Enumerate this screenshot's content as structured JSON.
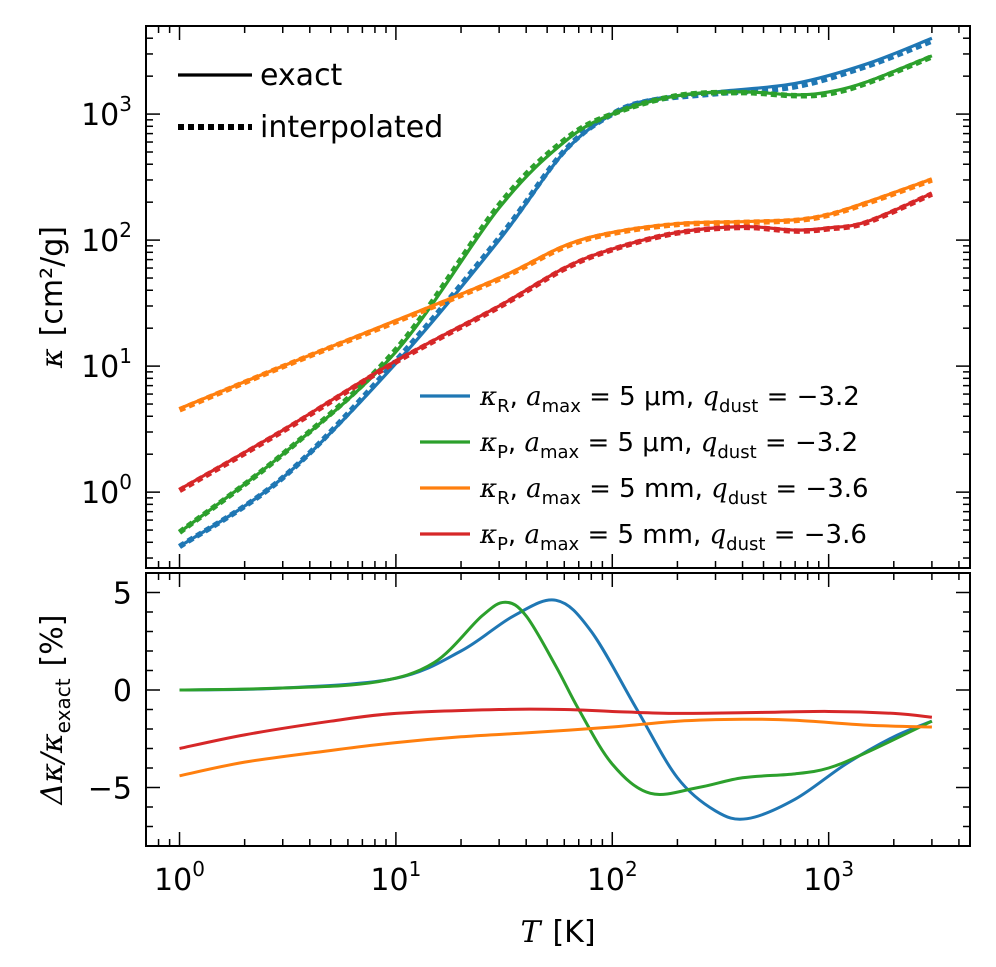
{
  "chart_data": [
    {
      "type": "line",
      "panel": "top",
      "xscale": "log",
      "yscale": "log",
      "xlim": [
        0.7,
        4500
      ],
      "ylim": [
        0.25,
        5000
      ],
      "ylabel_symbol": "κ",
      "ylabel_unit": "[cm²/g]",
      "x_ticks": [
        {
          "v": 1,
          "base": "10",
          "exp": "0"
        },
        {
          "v": 10,
          "base": "10",
          "exp": "1"
        },
        {
          "v": 100,
          "base": "10",
          "exp": "2"
        },
        {
          "v": 1000,
          "base": "10",
          "exp": "3"
        }
      ],
      "y_ticks": [
        {
          "v": 1,
          "base": "10",
          "exp": "0"
        },
        {
          "v": 10,
          "base": "10",
          "exp": "1"
        },
        {
          "v": 100,
          "base": "10",
          "exp": "2"
        },
        {
          "v": 1000,
          "base": "10",
          "exp": "3"
        }
      ],
      "style_legend": [
        {
          "label": "exact",
          "style": "solid"
        },
        {
          "label": "interpolated",
          "style": "dotted"
        }
      ],
      "series": [
        {
          "name": "κR, amax = 5 μm, qdust = −3.2",
          "kappa": "κ",
          "sub": "R",
          "amax": "5",
          "unit": "μm",
          "q": "−3.2",
          "color": "#1f77b4",
          "exact": [
            [
              1,
              0.37
            ],
            [
              3,
              1.3
            ],
            [
              10,
              10.5
            ],
            [
              30,
              100
            ],
            [
              60,
              500
            ],
            [
              100,
              1000
            ],
            [
              150,
              1300
            ],
            [
              300,
              1500
            ],
            [
              700,
              1750
            ],
            [
              1500,
              2500
            ],
            [
              3000,
              4000
            ]
          ],
          "interp": [
            [
              1,
              0.37
            ],
            [
              3,
              1.3
            ],
            [
              10,
              11
            ],
            [
              30,
              104
            ],
            [
              60,
              510
            ],
            [
              100,
              1000
            ],
            [
              150,
              1280
            ],
            [
              300,
              1450
            ],
            [
              700,
              1650
            ],
            [
              1500,
              2400
            ],
            [
              3000,
              3800
            ]
          ]
        },
        {
          "name": "κP, amax = 5 μm, qdust = −3.2",
          "kappa": "κ",
          "sub": "P",
          "amax": "5",
          "unit": "μm",
          "q": "−3.2",
          "color": "#2ca02c",
          "exact": [
            [
              1,
              0.48
            ],
            [
              3,
              2.0
            ],
            [
              10,
              13
            ],
            [
              30,
              180
            ],
            [
              60,
              600
            ],
            [
              100,
              1000
            ],
            [
              200,
              1400
            ],
            [
              400,
              1500
            ],
            [
              700,
              1420
            ],
            [
              1000,
              1500
            ],
            [
              1500,
              1800
            ],
            [
              3000,
              2900
            ]
          ],
          "interp": [
            [
              1,
              0.48
            ],
            [
              3,
              2.0
            ],
            [
              10,
              13.5
            ],
            [
              30,
              190
            ],
            [
              60,
              620
            ],
            [
              100,
              1000
            ],
            [
              200,
              1400
            ],
            [
              400,
              1480
            ],
            [
              700,
              1400
            ],
            [
              1000,
              1450
            ],
            [
              1500,
              1760
            ],
            [
              3000,
              2850
            ]
          ]
        },
        {
          "name": "κR, amax = 5 mm, qdust = −3.6",
          "kappa": "κ",
          "sub": "R",
          "amax": "5",
          "unit": "mm",
          "q": "−3.6",
          "color": "#ff7f0e",
          "exact": [
            [
              1,
              4.6
            ],
            [
              3,
              10
            ],
            [
              10,
              23
            ],
            [
              30,
              50
            ],
            [
              60,
              90
            ],
            [
              100,
              115
            ],
            [
              200,
              135
            ],
            [
              400,
              140
            ],
            [
              700,
              145
            ],
            [
              1000,
              160
            ],
            [
              1500,
              200
            ],
            [
              3000,
              305
            ]
          ],
          "interp": [
            [
              1,
              4.5
            ],
            [
              3,
              9.9
            ],
            [
              10,
              22.5
            ],
            [
              30,
              49
            ],
            [
              60,
              88
            ],
            [
              100,
              113
            ],
            [
              200,
              133
            ],
            [
              400,
              138
            ],
            [
              700,
              143
            ],
            [
              1000,
              158
            ],
            [
              1500,
              196
            ],
            [
              3000,
              300
            ]
          ]
        },
        {
          "name": "κP, amax = 5 mm, qdust = −3.6",
          "kappa": "κ",
          "sub": "P",
          "amax": "5",
          "unit": "mm",
          "q": "−3.6",
          "color": "#d62728",
          "exact": [
            [
              1,
              1.05
            ],
            [
              3,
              3.1
            ],
            [
              10,
              11
            ],
            [
              30,
              30
            ],
            [
              60,
              60
            ],
            [
              100,
              85
            ],
            [
              200,
              115
            ],
            [
              400,
              128
            ],
            [
              700,
              120
            ],
            [
              1000,
              125
            ],
            [
              1500,
              140
            ],
            [
              3000,
              235
            ]
          ],
          "interp": [
            [
              1,
              1.03
            ],
            [
              3,
              3.05
            ],
            [
              10,
              10.8
            ],
            [
              30,
              29.5
            ],
            [
              60,
              59
            ],
            [
              100,
              84
            ],
            [
              200,
              114
            ],
            [
              400,
              126
            ],
            [
              700,
              118
            ],
            [
              1000,
              123
            ],
            [
              1500,
              138
            ],
            [
              3000,
              232
            ]
          ]
        }
      ]
    },
    {
      "type": "line",
      "panel": "bottom",
      "xscale": "log",
      "yscale": "linear",
      "xlim": [
        0.7,
        4500
      ],
      "ylim": [
        -8,
        6
      ],
      "xlabel": "T",
      "xlabel_unit": "[K]",
      "ylabel": "Δκ/κexact [%]",
      "ylabel_delta": "Δκ/κ",
      "ylabel_sub": "exact",
      "ylabel_unit": "[%]",
      "y_ticks": [
        {
          "v": 5,
          "label": "5"
        },
        {
          "v": 0,
          "label": "0"
        },
        {
          "v": -5,
          "label": "−5"
        }
      ],
      "series": [
        {
          "color": "#1f77b4",
          "points": [
            [
              1,
              0
            ],
            [
              3,
              0.1
            ],
            [
              10,
              0.6
            ],
            [
              20,
              2
            ],
            [
              35,
              3.8
            ],
            [
              55,
              4.6
            ],
            [
              80,
              3
            ],
            [
              130,
              -1
            ],
            [
              200,
              -4.5
            ],
            [
              300,
              -6.2
            ],
            [
              420,
              -6.6
            ],
            [
              700,
              -5.6
            ],
            [
              1200,
              -3.8
            ],
            [
              2000,
              -2.4
            ],
            [
              3000,
              -1.6
            ]
          ]
        },
        {
          "color": "#2ca02c",
          "points": [
            [
              1,
              0
            ],
            [
              3,
              0.1
            ],
            [
              8,
              0.4
            ],
            [
              15,
              1.4
            ],
            [
              25,
              3.8
            ],
            [
              32,
              4.5
            ],
            [
              40,
              3.8
            ],
            [
              55,
              1.2
            ],
            [
              70,
              -1
            ],
            [
              100,
              -3.8
            ],
            [
              150,
              -5.3
            ],
            [
              250,
              -5
            ],
            [
              400,
              -4.5
            ],
            [
              700,
              -4.3
            ],
            [
              1000,
              -4
            ],
            [
              1500,
              -3.2
            ],
            [
              3000,
              -1.6
            ]
          ]
        },
        {
          "color": "#ff7f0e",
          "points": [
            [
              1,
              -4.4
            ],
            [
              2,
              -3.7
            ],
            [
              5,
              -3.1
            ],
            [
              10,
              -2.7
            ],
            [
              20,
              -2.4
            ],
            [
              40,
              -2.2
            ],
            [
              100,
              -1.9
            ],
            [
              200,
              -1.6
            ],
            [
              400,
              -1.5
            ],
            [
              700,
              -1.55
            ],
            [
              1500,
              -1.8
            ],
            [
              3000,
              -1.9
            ]
          ]
        },
        {
          "color": "#d62728",
          "points": [
            [
              1,
              -3
            ],
            [
              2,
              -2.3
            ],
            [
              5,
              -1.6
            ],
            [
              10,
              -1.2
            ],
            [
              30,
              -1
            ],
            [
              60,
              -1
            ],
            [
              100,
              -1.1
            ],
            [
              200,
              -1.2
            ],
            [
              500,
              -1.15
            ],
            [
              1000,
              -1.1
            ],
            [
              2000,
              -1.2
            ],
            [
              3000,
              -1.4
            ]
          ]
        }
      ]
    }
  ]
}
